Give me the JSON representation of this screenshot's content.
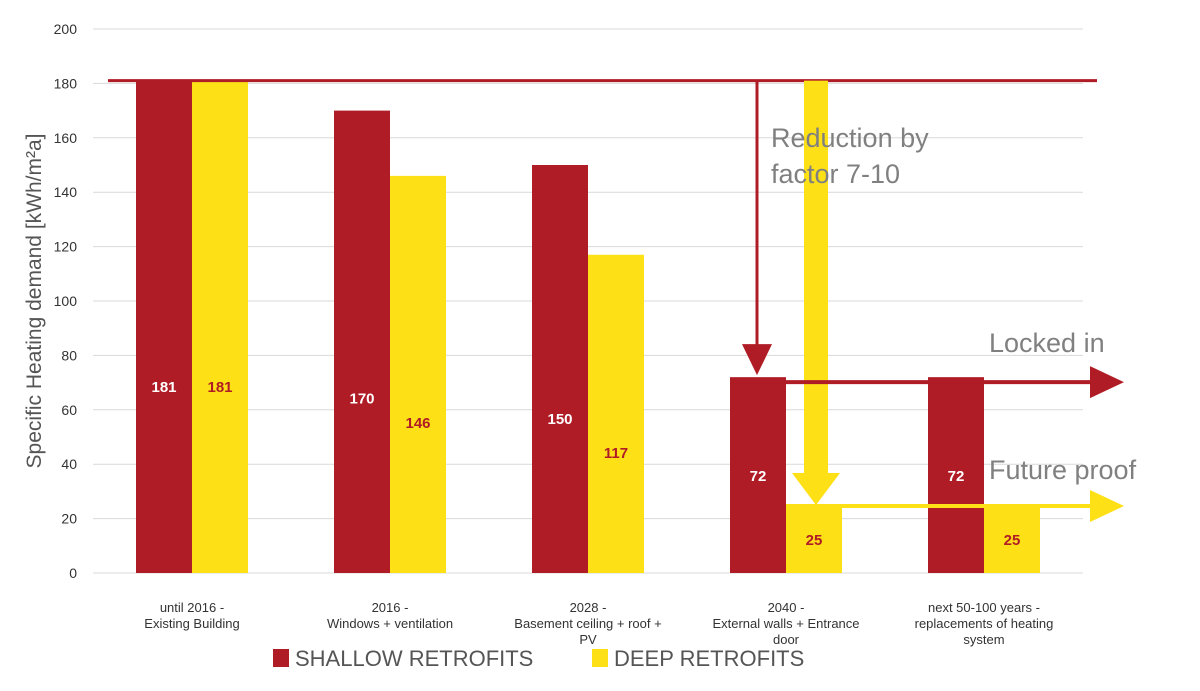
{
  "chart_data": {
    "type": "bar",
    "ylabel": "Specific Heating demand [kWh/m²a]",
    "ylim": [
      0,
      200
    ],
    "y_ticks": [
      0,
      20,
      40,
      60,
      80,
      100,
      120,
      140,
      160,
      180,
      200
    ],
    "grid": true,
    "legend_position": "bottom",
    "categories": [
      [
        "until 2016 -",
        "Existing Building"
      ],
      [
        "2016 -",
        "Windows + ventilation"
      ],
      [
        "2028 -",
        "Basement ceiling + roof +",
        "PV"
      ],
      [
        "2040 -",
        "External walls + Entrance",
        "door"
      ],
      [
        "next 50-100 years -",
        "replacements of heating",
        "system"
      ]
    ],
    "series": [
      {
        "name": "SHALLOW RETROFITS",
        "color": "#b01c26",
        "label_color": "#ffffff",
        "values": [
          181,
          170,
          150,
          72,
          72
        ]
      },
      {
        "name": "DEEP RETROFITS",
        "color": "#fde016",
        "label_color": "#b01c26",
        "values": [
          181,
          146,
          117,
          25,
          25
        ]
      }
    ],
    "reference_line": {
      "value": 181,
      "color": "#b01c26"
    },
    "annotations": {
      "reduction": [
        "Reduction by",
        "factor 7-10"
      ],
      "locked_in": "Locked in",
      "future_proof": "Future proof"
    }
  }
}
